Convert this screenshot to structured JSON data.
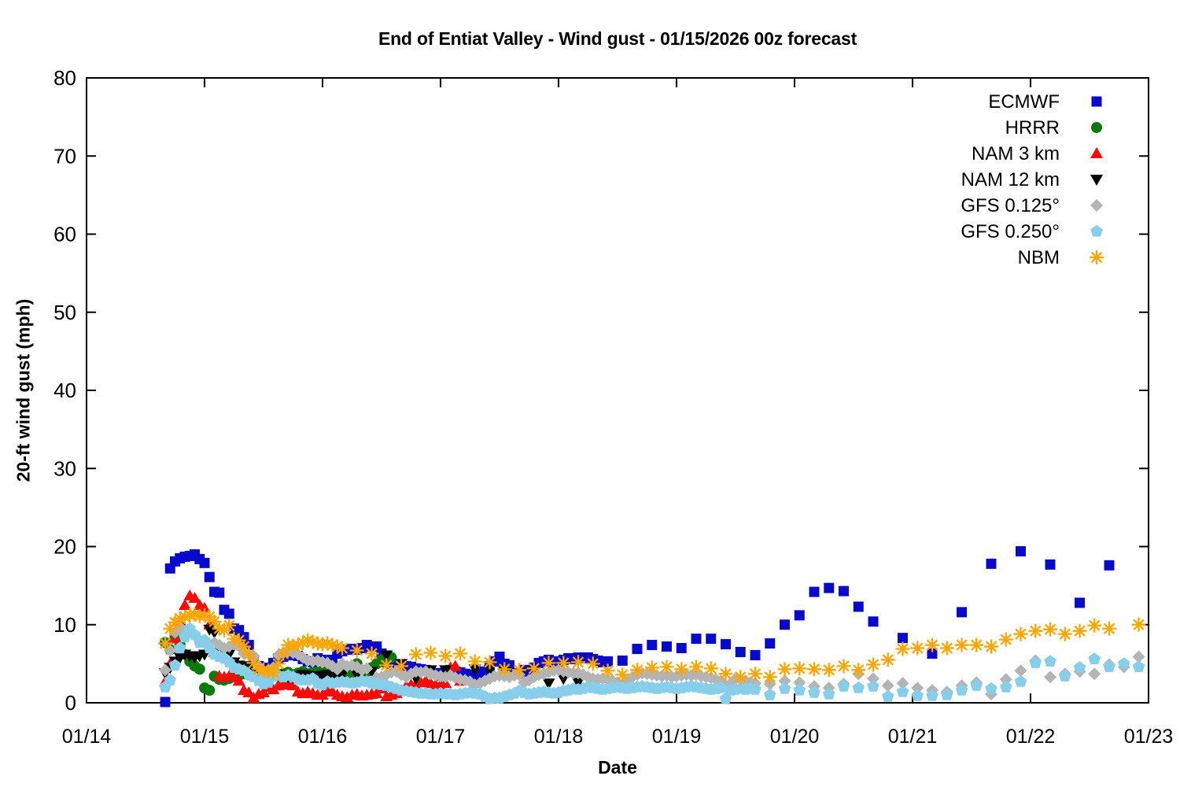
{
  "title": "End of Entiat Valley - Wind gust - 01/15/2026 00z forecast",
  "x_axis": {
    "label": "Date",
    "tick_labels": [
      "01/14",
      "01/15",
      "01/16",
      "01/17",
      "01/18",
      "01/19",
      "01/20",
      "01/21",
      "01/22",
      "01/23"
    ]
  },
  "y_axis": {
    "label": "20-ft wind gust (mph)",
    "tick_labels": [
      "0",
      "10",
      "20",
      "30",
      "40",
      "50",
      "60",
      "70",
      "80"
    ]
  },
  "legend": [
    {
      "series": "ecmwf",
      "label": "ECMWF"
    },
    {
      "series": "hrrr",
      "label": "HRRR"
    },
    {
      "series": "nam3",
      "label": "NAM 3 km"
    },
    {
      "series": "nam12",
      "label": "NAM 12 km"
    },
    {
      "series": "gfs125",
      "label": "GFS 0.125°"
    },
    {
      "series": "gfs250",
      "label": "GFS 0.250°"
    },
    {
      "series": "nbm",
      "label": "NBM"
    }
  ],
  "chart_data": {
    "type": "scatter",
    "title": "End of Entiat Valley - Wind gust - 01/15/2026 00z forecast",
    "xlabel": "Date",
    "ylabel": "20-ft wind gust (mph)",
    "x_unit": "hours after 01/14 00:00 local",
    "xlim_hours": [
      0,
      216
    ],
    "ylim": [
      0,
      80
    ],
    "x_tick_hours": [
      0,
      24,
      48,
      72,
      96,
      120,
      144,
      168,
      192,
      216
    ],
    "y_ticks": [
      0,
      10,
      20,
      30,
      40,
      50,
      60,
      70,
      80
    ],
    "grid": false,
    "legend_position": "top-right-inside",
    "series": [
      {
        "id": "ecmwf",
        "name": "ECMWF",
        "color": "#0909cc",
        "marker": "square",
        "segments": [
          {
            "start_hour": 16,
            "step_hours": 1,
            "values": [
              0.1,
              17.2,
              18.1,
              18.5,
              18.7,
              18.8,
              19.0,
              18.4,
              17.9,
              16.1,
              14.2,
              14.1,
              11.9,
              11.4,
              9.5,
              9.3,
              8.4,
              7.4,
              5.5,
              4.7,
              4.2,
              4.5,
              5.1,
              5.7,
              5.9,
              6.1,
              6.3,
              6.0,
              5.6,
              5.3,
              5.2,
              5.7,
              5.5,
              5.0,
              5.5,
              6.3,
              6.6,
              6.8,
              6.9,
              6.8,
              7.0,
              7.4,
              7.2,
              7.2,
              6.3,
              5.2,
              5.0,
              4.9,
              4.8,
              4.7,
              4.6,
              4.4,
              4.3,
              4.2,
              4.0,
              3.8,
              3.5,
              3.8,
              4.2,
              4.0,
              3.9,
              3.7,
              3.6,
              3.5,
              3.8,
              4.0,
              4.7,
              5.3,
              5.9,
              5.0,
              4.8,
              3.7,
              3.7,
              4.2,
              4.0,
              4.5,
              5.1,
              5.3,
              5.5,
              5.2,
              5.3,
              5.5,
              5.7,
              5.6,
              5.8,
              5.7,
              5.8,
              5.6,
              5.4,
              5.2,
              5.3
            ]
          },
          {
            "start_hour": 109,
            "step_hours": 3,
            "values": [
              5.4,
              6.9,
              7.4,
              7.2,
              7.0,
              8.2,
              8.2,
              7.5,
              6.5,
              6.1,
              7.6,
              10.0,
              11.2,
              14.2,
              14.7,
              14.3,
              12.3,
              10.4
            ]
          },
          {
            "start_hour": 166,
            "step_hours": 6,
            "values": [
              8.3,
              6.3,
              11.6,
              17.8,
              19.4,
              17.7,
              12.8,
              17.6
            ]
          }
        ]
      },
      {
        "id": "hrrr",
        "name": "HRRR",
        "color": "#0a7a0a",
        "marker": "circle",
        "segments": [
          {
            "start_hour": 16,
            "step_hours": 1,
            "values": [
              7.7,
              6.8,
              8.4,
              7.5,
              6.2,
              5.3,
              4.7,
              4.3,
              1.9,
              1.6,
              3.4,
              3.0,
              2.9,
              3.1,
              3.3,
              3.5,
              3.7,
              3.6,
              3.8,
              3.7,
              3.9,
              4.1,
              3.8,
              3.6,
              3.7,
              3.9,
              3.6,
              3.8,
              4.0,
              3.7,
              3.9,
              3.9,
              4.1,
              3.8,
              4.0,
              4.1,
              3.7,
              3.5,
              3.9,
              5.0,
              4.2,
              4.0,
              4.5,
              5.0,
              5.5,
              5.6,
              5.8
            ]
          }
        ]
      },
      {
        "id": "nam3",
        "name": "NAM 3 km",
        "color": "#fb0b07",
        "marker": "triangle-up",
        "segments": [
          {
            "start_hour": 16,
            "step_hours": 1,
            "values": [
              2.7,
              5.0,
              8.2,
              10.5,
              12.5,
              13.7,
              13.4,
              12.5,
              12.1,
              10.0,
              6.5,
              3.4,
              3.3,
              3.4,
              3.3,
              2.8,
              1.6,
              1.3,
              0.6,
              1.1,
              1.3,
              2.0,
              1.7,
              2.2,
              2.4,
              2.3,
              2.2,
              1.4,
              1.2,
              1.4,
              1.2,
              1.0,
              1.0,
              1.5,
              1.4,
              1.0,
              0.8,
              0.7,
              1.0,
              1.1,
              0.9,
              1.0,
              1.1,
              1.2,
              1.8,
              0.8,
              1.0,
              1.2,
              1.5,
              2.1,
              2.3,
              2.4,
              2.6,
              2.8,
              2.5,
              2.3,
              2.3,
              2.5,
              4.5,
              4.7,
              2.8
            ]
          }
        ]
      },
      {
        "id": "nam12",
        "name": "NAM 12 km",
        "color": "#000000",
        "marker": "triangle-down",
        "segments": [
          {
            "start_hour": 16,
            "step_hours": 1,
            "values": [
              3.8,
              4.5,
              5.3,
              5.8,
              6.2,
              6.0,
              5.8,
              6.0,
              6.2,
              9.4,
              9.0,
              6.3,
              6.0,
              6.2,
              5.2,
              4.8,
              4.7,
              4.5,
              3.8,
              3.6,
              3.4,
              3.3,
              3.5,
              3.6,
              3.4,
              3.3,
              3.2,
              3.4,
              3.6,
              3.5,
              3.4,
              3.3,
              3.5,
              3.6,
              3.4,
              3.5,
              3.6
            ]
          },
          {
            "start_hour": 55,
            "step_hours": 3,
            "values": [
              3.6,
              4.0,
              6.1,
              5.0,
              3.1,
              4.2,
              4.2,
              3.0,
              4.3,
              4.2,
              4.0,
              3.8,
              4.0,
              2.5,
              3.1,
              2.6
            ]
          }
        ]
      },
      {
        "id": "gfs125",
        "name": "GFS 0.125°",
        "color": "#b4b4b4",
        "marker": "diamond",
        "segments": [
          {
            "start_hour": 16,
            "step_hours": 1,
            "values": [
              4.2,
              6.7,
              9.0,
              9.7,
              8.8,
              9.2,
              8.6,
              8.0,
              7.7,
              7.4,
              7.7,
              7.4,
              7.0,
              7.2,
              7.5,
              7.2,
              6.3,
              6.2,
              6.0,
              4.7,
              3.7,
              3.5,
              4.5,
              6.1,
              6.4,
              6.6,
              6.4,
              6.2,
              5.8,
              5.4,
              5.3,
              5.4,
              5.2,
              5.1,
              4.7,
              4.3,
              5.0,
              4.7,
              4.8,
              4.6,
              4.2,
              4.4,
              2.7,
              3.2,
              3.3,
              3.6,
              3.9,
              4.0,
              3.6,
              3.3,
              3.7,
              4.0,
              3.9,
              4.0,
              3.7,
              3.5,
              3.4,
              3.3,
              3.5,
              3.2,
              3.0,
              2.9,
              2.7,
              2.3,
              2.5,
              2.8,
              3.1,
              3.4,
              3.5,
              3.4,
              3.3,
              3.5,
              3.6,
              2.6,
              2.9,
              3.3,
              3.6,
              3.7,
              3.9,
              4.1,
              4.2,
              4.0,
              3.9,
              3.8,
              3.8,
              3.6,
              3.3,
              3.1,
              3.0,
              3.1,
              3.0,
              2.8,
              2.6,
              2.3,
              3.0,
              3.3,
              3.6,
              3.8,
              3.7,
              3.6,
              3.5,
              3.4,
              3.5,
              3.3,
              3.4,
              3.5,
              3.6,
              3.5,
              3.6,
              3.4,
              3.3,
              3.2,
              3.0,
              2.8,
              2.1,
              2.5,
              3.1,
              3.0,
              2.8,
              2.6,
              2.5
            ]
          },
          {
            "start_hour": 139,
            "step_hours": 3,
            "values": [
              2.4,
              2.8,
              2.6,
              2.1,
              1.9,
              2.4,
              3.7,
              3.1,
              2.2,
              2.5,
              1.9,
              1.6,
              1.4,
              2.2,
              2.6,
              1.1,
              3.0,
              4.1,
              5.4,
              3.3,
              3.7,
              4.0,
              3.7,
              4.9,
              4.6,
              5.9
            ]
          }
        ]
      },
      {
        "id": "gfs250",
        "name": "GFS 0.250°",
        "color": "#87ceeb",
        "marker": "pentagon",
        "segments": [
          {
            "start_hour": 16,
            "step_hours": 1,
            "values": [
              2.0,
              2.9,
              4.8,
              7.0,
              8.4,
              9.5,
              8.7,
              7.7,
              8.0,
              7.0,
              6.2,
              5.9,
              5.7,
              5.2,
              4.5,
              4.3,
              4.1,
              3.6,
              3.3,
              2.8,
              2.4,
              2.6,
              3.4,
              3.5,
              3.3,
              3.5,
              3.3,
              3.0,
              2.9,
              2.9,
              3.1,
              2.5,
              2.3,
              2.7,
              2.5,
              2.6,
              2.7,
              2.6,
              2.5,
              2.6,
              2.8,
              2.7,
              2.5,
              2.4,
              2.3,
              2.2,
              2.0,
              1.8,
              1.6,
              1.5,
              1.4,
              1.3,
              1.2,
              1.2,
              1.1,
              1.1,
              1.2,
              1.1,
              1.1,
              1.0,
              1.1,
              1.2,
              1.3,
              1.2,
              1.1,
              0.8,
              0.5,
              0.6,
              0.6,
              0.8,
              1.0,
              1.2,
              1.5,
              1.3,
              1.1,
              1.2,
              1.3,
              1.4,
              1.3,
              1.2,
              1.3,
              1.5,
              1.6,
              1.8,
              1.7,
              1.8,
              2.0,
              1.9,
              1.8,
              1.7,
              1.8,
              1.9,
              2.0,
              1.9,
              1.8,
              1.9,
              2.0,
              2.1,
              2.0,
              1.9,
              1.8,
              1.9,
              2.0,
              1.9,
              1.8,
              1.9,
              2.0,
              2.1,
              2.0,
              1.9,
              1.8,
              1.7,
              1.8,
              1.9,
              0.5,
              1.6,
              1.7,
              1.8,
              1.7,
              1.8,
              1.7
            ]
          },
          {
            "start_hour": 139,
            "step_hours": 3,
            "values": [
              1.0,
              1.8,
              1.6,
              1.3,
              1.1,
              2.1,
              1.9,
              2.1,
              0.8,
              1.4,
              0.9,
              0.9,
              1.0,
              1.6,
              2.2,
              1.8,
              2.0,
              2.7,
              5.1,
              5.3,
              3.4,
              4.5,
              5.6,
              4.6,
              5.0,
              4.6
            ]
          }
        ]
      },
      {
        "id": "nbm",
        "name": "NBM",
        "color": "#ffa500",
        "marker": "asterisk",
        "segments": [
          {
            "start_hour": 16,
            "step_hours": 1,
            "values": [
              7.6,
              9.5,
              10.3,
              10.8,
              11.0,
              11.2,
              11.3,
              11.1,
              11.2,
              11.0,
              10.4,
              9.5,
              9.3,
              9.9,
              8.2,
              8.0,
              7.2,
              6.2,
              5.1,
              4.3,
              4.2,
              4.1,
              3.9,
              5.0,
              6.3,
              7.4,
              7.3,
              7.4,
              7.7,
              8.0,
              7.8,
              7.6,
              7.5,
              7.6,
              7.4,
              7.2,
              7.0
            ]
          },
          {
            "start_hour": 55,
            "step_hours": 3,
            "values": [
              6.7,
              6.3,
              4.8,
              4.7,
              6.2,
              6.4,
              6.0,
              6.3,
              5.3,
              5.2,
              4.3,
              4.2,
              4.4,
              5.1,
              5.1,
              5.2,
              5.0,
              4.1,
              3.6,
              4.2,
              4.5,
              4.6,
              4.3,
              4.6,
              4.4,
              3.7,
              3.3,
              3.7,
              3.3,
              4.3,
              4.4,
              4.3,
              4.2,
              4.7,
              4.2,
              4.9,
              5.5,
              6.9,
              7.0,
              7.4,
              7.0,
              7.4,
              7.4,
              7.2,
              8.1,
              8.8,
              9.2,
              9.4,
              8.8,
              9.2,
              9.9,
              9.5
            ]
          },
          {
            "start_hour": 214,
            "step_hours": 3,
            "values": [
              10.0
            ]
          }
        ]
      }
    ]
  }
}
